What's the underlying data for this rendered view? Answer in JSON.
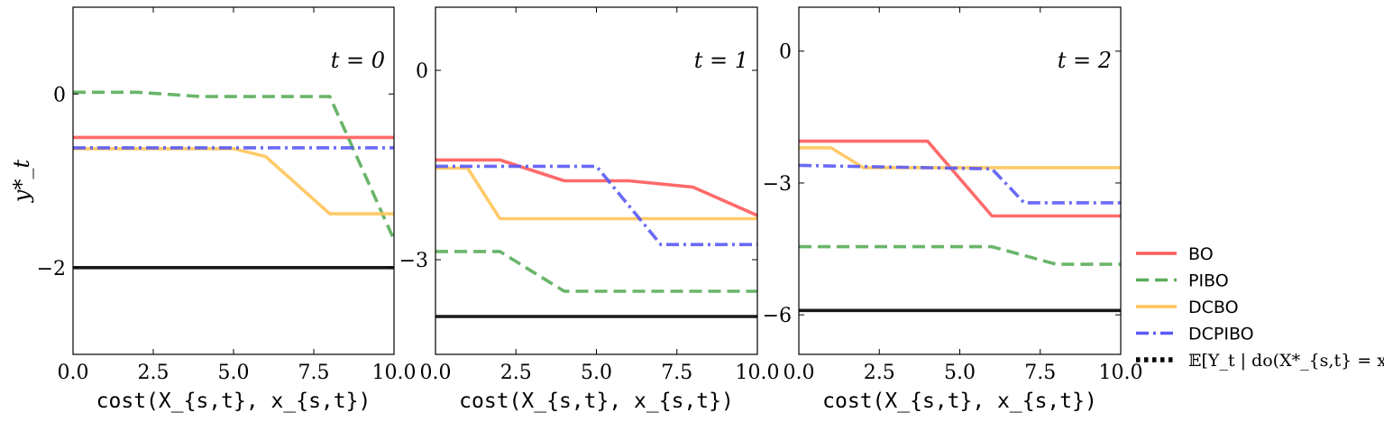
{
  "chart_data": [
    {
      "type": "line",
      "panel_label": "t = 0",
      "xlabel": "cost(X_{s,t}, x_{s,t})",
      "ylabel": "y*_t",
      "xlim": [
        0,
        10
      ],
      "ylim": [
        -3,
        1
      ],
      "xticks": [
        0,
        2.5,
        5,
        7.5,
        10
      ],
      "xtick_labels": [
        "0.0",
        "2.5",
        "5.0",
        "7.5",
        "10.0"
      ],
      "yticks": [
        0,
        -2
      ],
      "ytick_labels": [
        "0",
        "−2"
      ],
      "series": [
        {
          "name": "BO",
          "x": [
            0,
            10
          ],
          "y": [
            -0.5,
            -0.5
          ]
        },
        {
          "name": "PIBO",
          "x": [
            0,
            2,
            4,
            8,
            10
          ],
          "y": [
            0.02,
            0.02,
            -0.03,
            -0.03,
            -1.68
          ]
        },
        {
          "name": "DCBO",
          "x": [
            0,
            5,
            6,
            8,
            10
          ],
          "y": [
            -0.63,
            -0.63,
            -0.72,
            -1.38,
            -1.38
          ]
        },
        {
          "name": "DCPIBO",
          "x": [
            0,
            10
          ],
          "y": [
            -0.62,
            -0.62
          ]
        },
        {
          "name": "E[Y_t | do(X*_{s,t} = x*_{s,t})]",
          "x": [
            0,
            10
          ],
          "y": [
            -2.0,
            -2.0
          ]
        }
      ]
    },
    {
      "type": "line",
      "panel_label": "t = 1",
      "xlabel": "cost(X_{s,t}, x_{s,t})",
      "ylabel": "",
      "xlim": [
        0,
        10
      ],
      "ylim": [
        -4.5,
        1.0
      ],
      "xticks": [
        0,
        2.5,
        5,
        7.5,
        10
      ],
      "xtick_labels": [
        "0.0",
        "2.5",
        "5.0",
        "7.5",
        "10.0"
      ],
      "yticks": [
        0,
        -3
      ],
      "ytick_labels": [
        "0",
        "−3"
      ],
      "series": [
        {
          "name": "BO",
          "x": [
            0,
            2,
            4,
            6,
            8,
            10
          ],
          "y": [
            -1.42,
            -1.42,
            -1.75,
            -1.75,
            -1.85,
            -2.3
          ]
        },
        {
          "name": "PIBO",
          "x": [
            0,
            2,
            4,
            10
          ],
          "y": [
            -2.87,
            -2.87,
            -3.5,
            -3.5
          ]
        },
        {
          "name": "DCBO",
          "x": [
            0,
            1,
            2,
            10
          ],
          "y": [
            -1.55,
            -1.55,
            -2.35,
            -2.35
          ]
        },
        {
          "name": "DCPIBO",
          "x": [
            0,
            5,
            7,
            10
          ],
          "y": [
            -1.52,
            -1.52,
            -2.76,
            -2.76
          ]
        },
        {
          "name": "E[Y_t | do(X*_{s,t} = x*_{s,t})]",
          "x": [
            0,
            10
          ],
          "y": [
            -3.9,
            -3.9
          ]
        }
      ]
    },
    {
      "type": "line",
      "panel_label": "t = 2",
      "xlabel": "cost(X_{s,t}, x_{s,t})",
      "ylabel": "",
      "xlim": [
        0,
        10
      ],
      "ylim": [
        -6.9,
        1.0
      ],
      "xticks": [
        0,
        2.5,
        5,
        7.5,
        10
      ],
      "xtick_labels": [
        "0.0",
        "2.5",
        "5.0",
        "7.5",
        "10.0"
      ],
      "yticks": [
        0,
        -3,
        -6
      ],
      "ytick_labels": [
        "0",
        "−3",
        "−6"
      ],
      "series": [
        {
          "name": "BO",
          "x": [
            0,
            4,
            6,
            10
          ],
          "y": [
            -2.05,
            -2.05,
            -3.75,
            -3.75
          ]
        },
        {
          "name": "PIBO",
          "x": [
            0,
            6,
            8,
            10
          ],
          "y": [
            -4.45,
            -4.45,
            -4.85,
            -4.85
          ]
        },
        {
          "name": "DCBO",
          "x": [
            0,
            1,
            2,
            10
          ],
          "y": [
            -2.2,
            -2.2,
            -2.65,
            -2.65
          ]
        },
        {
          "name": "DCPIBO",
          "x": [
            0,
            6,
            7,
            10
          ],
          "y": [
            -2.6,
            -2.68,
            -3.45,
            -3.45
          ]
        },
        {
          "name": "E[Y_t | do(X*_{s,t} = x*_{s,t})]",
          "x": [
            0,
            10
          ],
          "y": [
            -5.9,
            -5.9
          ]
        }
      ]
    }
  ],
  "legend": {
    "placement": "right",
    "entries": [
      {
        "label": "BO",
        "color": "#ff5a5a",
        "style": "solid"
      },
      {
        "label": "PIBO",
        "color": "#5aad5a",
        "style": "dashed"
      },
      {
        "label": "DCBO",
        "color": "#ffc55a",
        "style": "solid"
      },
      {
        "label": "DCPIBO",
        "color": "#5a5af5",
        "style": "dashdot"
      },
      {
        "label": "𝔼[Y_t | do(X*_{s,t} = x*_{s,t})]",
        "color": "#000000",
        "style": "dotted"
      }
    ]
  }
}
